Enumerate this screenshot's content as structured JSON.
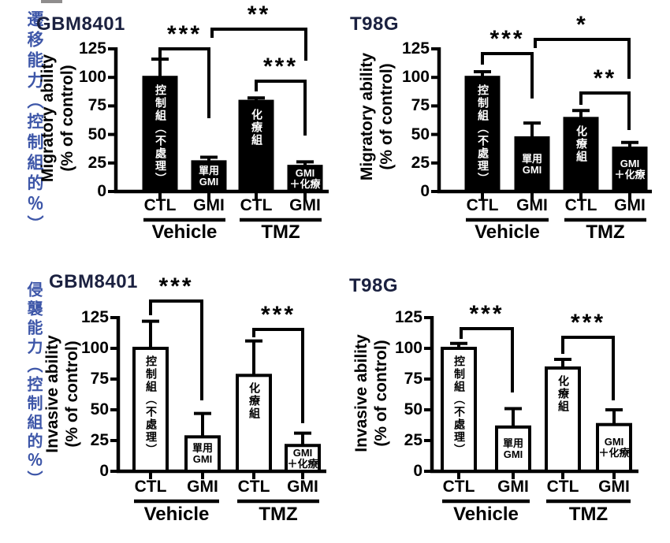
{
  "figure": {
    "background": "#ffffff",
    "accent_text_color": "#3d56a8",
    "title_color": "#1b2140",
    "bar_outline_color": "#000000"
  },
  "sidebar_labels": [
    {
      "text": "遷移能力（控制組的％）"
    },
    {
      "text": "侵襲能力（控制組的％）"
    }
  ],
  "chart_data": [
    {
      "type": "bar",
      "title": "GBM8401",
      "ylabel": "Migratory ability\n(% of control)",
      "ylim": [
        0,
        125
      ],
      "yticks": [
        0,
        25,
        50,
        75,
        100,
        125
      ],
      "bar_fill": "#000000",
      "bar_text_color": "#ffffff",
      "categories": [
        "CTL",
        "GMI",
        "CTL",
        "GMI"
      ],
      "groups": [
        "Vehicle",
        "TMZ"
      ],
      "bars": [
        {
          "x_label": "CTL",
          "group": "Vehicle",
          "value": 100,
          "err_top": 116,
          "inner_label": "控制組（不處理）",
          "vertical_label": true
        },
        {
          "x_label": "GMI",
          "group": "Vehicle",
          "value": 26,
          "err_top": 30,
          "inner_label": "單用\nGMI",
          "vertical_label": false
        },
        {
          "x_label": "CTL",
          "group": "TMZ",
          "value": 79,
          "err_top": 82,
          "inner_label": "化療組",
          "vertical_label": true
        },
        {
          "x_label": "GMI",
          "group": "TMZ",
          "value": 22,
          "err_top": 26,
          "inner_label": "GMI\n＋化療",
          "vertical_label": false
        }
      ],
      "brackets": [
        {
          "between": [
            "Vehicle-CTL",
            "Vehicle-GMI"
          ],
          "label": "***"
        },
        {
          "between": [
            "Vehicle-GMI",
            "TMZ-GMI"
          ],
          "label": "**"
        },
        {
          "between": [
            "TMZ-CTL",
            "TMZ-GMI"
          ],
          "label": "***"
        }
      ]
    },
    {
      "type": "bar",
      "title": "T98G",
      "ylabel": "Migratory ability\n(% of control)",
      "ylim": [
        0,
        125
      ],
      "yticks": [
        0,
        25,
        50,
        75,
        100,
        125
      ],
      "bar_fill": "#000000",
      "bar_text_color": "#ffffff",
      "categories": [
        "CTL",
        "GMI",
        "CTL",
        "GMI"
      ],
      "groups": [
        "Vehicle",
        "TMZ"
      ],
      "bars": [
        {
          "x_label": "CTL",
          "group": "Vehicle",
          "value": 100,
          "err_top": 105,
          "inner_label": "控制組（不處理）",
          "vertical_label": true
        },
        {
          "x_label": "GMI",
          "group": "Vehicle",
          "value": 47,
          "err_top": 60,
          "inner_label": "單用\nGMI",
          "vertical_label": false
        },
        {
          "x_label": "CTL",
          "group": "TMZ",
          "value": 64,
          "err_top": 71,
          "inner_label": "化療組",
          "vertical_label": true
        },
        {
          "x_label": "GMI",
          "group": "TMZ",
          "value": 38,
          "err_top": 43,
          "inner_label": "GMI\n＋化療",
          "vertical_label": false
        }
      ],
      "brackets": [
        {
          "between": [
            "Vehicle-CTL",
            "Vehicle-GMI"
          ],
          "label": "***"
        },
        {
          "between": [
            "Vehicle-GMI",
            "TMZ-GMI"
          ],
          "label": "*"
        },
        {
          "between": [
            "TMZ-CTL",
            "TMZ-GMI"
          ],
          "label": "**"
        }
      ]
    },
    {
      "type": "bar",
      "title": "GBM8401",
      "ylabel": "Invasive ability\n(% of control)",
      "ylim": [
        0,
        125
      ],
      "yticks": [
        0,
        25,
        50,
        75,
        100,
        125
      ],
      "bar_fill": "#ffffff",
      "bar_text_color": "#000000",
      "categories": [
        "CTL",
        "GMI",
        "CTL",
        "GMI"
      ],
      "groups": [
        "Vehicle",
        "TMZ"
      ],
      "bars": [
        {
          "x_label": "CTL",
          "group": "Vehicle",
          "value": 100,
          "err_top": 122,
          "inner_label": "控制組（不處理）",
          "vertical_label": true
        },
        {
          "x_label": "GMI",
          "group": "Vehicle",
          "value": 28,
          "err_top": 47,
          "inner_label": "單用\nGMI",
          "vertical_label": false
        },
        {
          "x_label": "CTL",
          "group": "TMZ",
          "value": 78,
          "err_top": 106,
          "inner_label": "化療組",
          "vertical_label": true
        },
        {
          "x_label": "GMI",
          "group": "TMZ",
          "value": 21,
          "err_top": 31,
          "inner_label": "GMI\n＋化療",
          "vertical_label": false
        }
      ],
      "brackets": [
        {
          "between": [
            "Vehicle-CTL",
            "Vehicle-GMI"
          ],
          "label": "***"
        },
        {
          "between": [
            "TMZ-CTL",
            "TMZ-GMI"
          ],
          "label": "***"
        }
      ]
    },
    {
      "type": "bar",
      "title": "T98G",
      "ylabel": "Invasive ability\n(% of control)",
      "ylim": [
        0,
        125
      ],
      "yticks": [
        0,
        25,
        50,
        75,
        100,
        125
      ],
      "bar_fill": "#ffffff",
      "bar_text_color": "#000000",
      "categories": [
        "CTL",
        "GMI",
        "CTL",
        "GMI"
      ],
      "groups": [
        "Vehicle",
        "TMZ"
      ],
      "bars": [
        {
          "x_label": "CTL",
          "group": "Vehicle",
          "value": 100,
          "err_top": 104,
          "inner_label": "控制組（不處理）",
          "vertical_label": true
        },
        {
          "x_label": "GMI",
          "group": "Vehicle",
          "value": 36,
          "err_top": 51,
          "inner_label": "單用\nGMI",
          "vertical_label": false
        },
        {
          "x_label": "CTL",
          "group": "TMZ",
          "value": 84,
          "err_top": 91,
          "inner_label": "化療組",
          "vertical_label": true
        },
        {
          "x_label": "GMI",
          "group": "TMZ",
          "value": 38,
          "err_top": 50,
          "inner_label": "GMI\n＋化療",
          "vertical_label": false
        }
      ],
      "brackets": [
        {
          "between": [
            "Vehicle-CTL",
            "Vehicle-GMI"
          ],
          "label": "***"
        },
        {
          "between": [
            "TMZ-CTL",
            "TMZ-GMI"
          ],
          "label": "***"
        }
      ]
    }
  ]
}
